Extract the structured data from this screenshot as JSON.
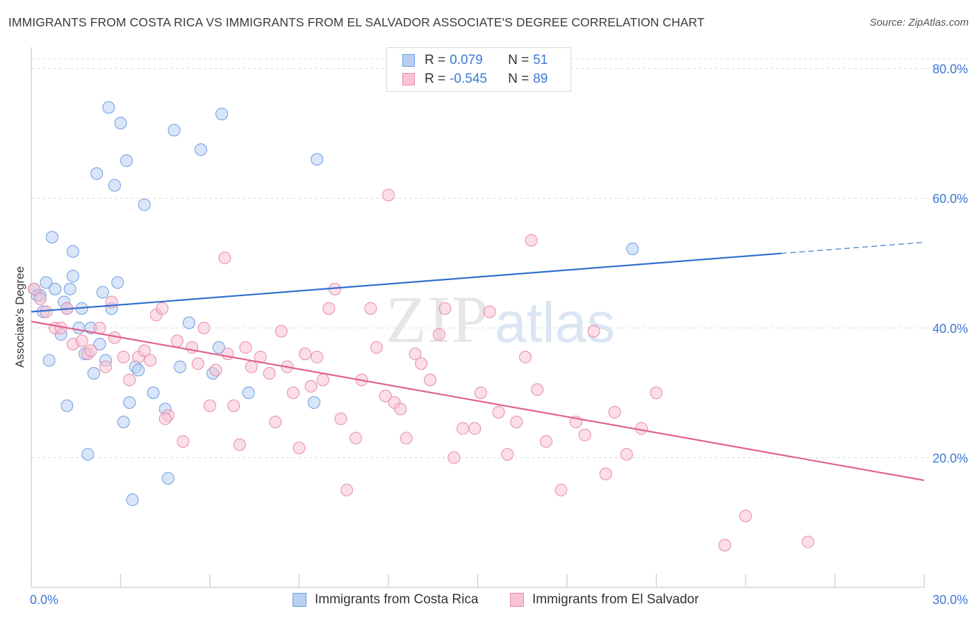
{
  "title": "IMMIGRANTS FROM COSTA RICA VS IMMIGRANTS FROM EL SALVADOR ASSOCIATE'S DEGREE CORRELATION CHART",
  "source": "Source: ZipAtlas.com",
  "watermark": {
    "zip": "ZIP",
    "atlas": "atlas"
  },
  "stats": [
    {
      "r_label": "R =",
      "r_value": "0.079",
      "n_label": "N =",
      "n_value": "51"
    },
    {
      "r_label": "R =",
      "r_value": "-0.545",
      "n_label": "N =",
      "n_value": "89"
    }
  ],
  "legend": [
    {
      "label": "Immigrants from Costa Rica"
    },
    {
      "label": "Immigrants from El Salvador"
    }
  ],
  "colors": {
    "blue_fill": "#b9d0f2",
    "blue_stroke": "#6c9ce0",
    "blue_line": "#2f6fce",
    "pink_fill": "#f8c3d4",
    "pink_stroke": "#e58aa9",
    "pink_line": "#e0618f",
    "tick_label": "#3c78d8",
    "grid": "#d9d9d9",
    "axis": "#cccccc"
  },
  "chart_data": {
    "type": "scatter",
    "ylabel": "Associate's Degree",
    "xlim": [
      0,
      30
    ],
    "ylim": [
      0,
      82
    ],
    "x_tick_labels": [
      {
        "value": 0,
        "label": "0.0%"
      },
      {
        "value": 30,
        "label": "30.0%"
      }
    ],
    "y_tick_labels": [
      {
        "value": 20,
        "label": "20.0%"
      },
      {
        "value": 40,
        "label": "40.0%"
      },
      {
        "value": 60,
        "label": "60.0%"
      },
      {
        "value": 80,
        "label": "80.0%"
      }
    ],
    "y_gridlines": [
      20,
      40,
      60,
      80,
      81.5
    ],
    "series": [
      {
        "name": "Immigrants from Costa Rica",
        "color": "blue",
        "trend": {
          "x0": 0,
          "y0": 42.5,
          "x1": 25.2,
          "y1": 51.5,
          "dash_x1": 30,
          "dash_y1": 53.2
        },
        "points": [
          [
            0.1,
            46.0
          ],
          [
            0.2,
            45.0
          ],
          [
            0.4,
            42.5
          ],
          [
            0.6,
            35.0
          ],
          [
            0.5,
            47.0
          ],
          [
            0.7,
            54.0
          ],
          [
            0.8,
            46.0
          ],
          [
            1.0,
            39.0
          ],
          [
            1.1,
            44.0
          ],
          [
            1.2,
            43.0
          ],
          [
            1.2,
            28.0
          ],
          [
            1.3,
            46.0
          ],
          [
            1.4,
            48.0
          ],
          [
            1.4,
            51.8
          ],
          [
            1.6,
            40.0
          ],
          [
            1.7,
            43.0
          ],
          [
            1.8,
            36.0
          ],
          [
            1.9,
            20.5
          ],
          [
            2.0,
            40.0
          ],
          [
            2.1,
            33.0
          ],
          [
            2.2,
            63.8
          ],
          [
            2.3,
            37.5
          ],
          [
            2.4,
            45.5
          ],
          [
            2.5,
            35.0
          ],
          [
            2.6,
            74.0
          ],
          [
            2.7,
            43.0
          ],
          [
            2.8,
            62.0
          ],
          [
            2.9,
            47.0
          ],
          [
            3.0,
            71.6
          ],
          [
            3.1,
            25.5
          ],
          [
            3.2,
            65.8
          ],
          [
            3.3,
            28.5
          ],
          [
            3.4,
            13.5
          ],
          [
            3.5,
            34.0
          ],
          [
            3.6,
            33.5
          ],
          [
            3.8,
            59.0
          ],
          [
            4.1,
            30.0
          ],
          [
            4.5,
            27.5
          ],
          [
            4.6,
            16.8
          ],
          [
            4.8,
            70.5
          ],
          [
            5.0,
            34.0
          ],
          [
            5.3,
            40.8
          ],
          [
            5.7,
            67.5
          ],
          [
            6.1,
            33.0
          ],
          [
            6.3,
            37.0
          ],
          [
            6.4,
            73.0
          ],
          [
            7.3,
            30.0
          ],
          [
            9.5,
            28.5
          ],
          [
            9.6,
            66.0
          ],
          [
            20.2,
            52.2
          ],
          [
            0.3,
            45.0
          ]
        ]
      },
      {
        "name": "Immigrants from El Salvador",
        "color": "pink",
        "trend": {
          "x0": 0,
          "y0": 41.0,
          "x1": 30,
          "y1": 16.5
        },
        "points": [
          [
            0.1,
            46.0
          ],
          [
            0.3,
            44.5
          ],
          [
            0.5,
            42.5
          ],
          [
            0.8,
            40.0
          ],
          [
            1.0,
            40.0
          ],
          [
            1.2,
            43.0
          ],
          [
            1.4,
            37.5
          ],
          [
            1.7,
            38.0
          ],
          [
            1.9,
            36.0
          ],
          [
            2.0,
            36.5
          ],
          [
            2.3,
            40.0
          ],
          [
            2.5,
            34.0
          ],
          [
            2.7,
            44.0
          ],
          [
            2.8,
            38.5
          ],
          [
            3.1,
            35.5
          ],
          [
            3.3,
            32.0
          ],
          [
            3.6,
            35.5
          ],
          [
            3.8,
            36.5
          ],
          [
            4.0,
            35.0
          ],
          [
            4.2,
            42.0
          ],
          [
            4.4,
            43.0
          ],
          [
            4.6,
            26.5
          ],
          [
            4.9,
            38.0
          ],
          [
            5.1,
            22.5
          ],
          [
            5.4,
            37.0
          ],
          [
            5.6,
            34.5
          ],
          [
            5.8,
            40.0
          ],
          [
            6.0,
            28.0
          ],
          [
            6.2,
            33.5
          ],
          [
            6.5,
            50.8
          ],
          [
            6.6,
            36.0
          ],
          [
            6.8,
            28.0
          ],
          [
            7.0,
            22.0
          ],
          [
            7.2,
            37.0
          ],
          [
            7.4,
            34.0
          ],
          [
            7.7,
            35.5
          ],
          [
            8.0,
            33.0
          ],
          [
            8.2,
            25.5
          ],
          [
            8.4,
            39.5
          ],
          [
            8.6,
            34.0
          ],
          [
            8.8,
            30.0
          ],
          [
            9.0,
            21.5
          ],
          [
            9.2,
            36.0
          ],
          [
            9.4,
            31.0
          ],
          [
            9.6,
            35.5
          ],
          [
            9.8,
            32.0
          ],
          [
            10.0,
            43.0
          ],
          [
            10.2,
            46.0
          ],
          [
            10.4,
            26.0
          ],
          [
            10.6,
            15.0
          ],
          [
            10.9,
            23.0
          ],
          [
            11.1,
            32.0
          ],
          [
            11.4,
            43.0
          ],
          [
            11.6,
            37.0
          ],
          [
            11.9,
            29.5
          ],
          [
            12.0,
            60.5
          ],
          [
            12.2,
            28.5
          ],
          [
            12.4,
            27.5
          ],
          [
            12.6,
            23.0
          ],
          [
            12.9,
            36.0
          ],
          [
            13.1,
            34.5
          ],
          [
            13.4,
            32.0
          ],
          [
            13.7,
            39.0
          ],
          [
            13.9,
            43.0
          ],
          [
            14.2,
            20.0
          ],
          [
            14.5,
            24.5
          ],
          [
            14.9,
            24.5
          ],
          [
            15.1,
            30.0
          ],
          [
            15.4,
            42.5
          ],
          [
            15.7,
            27.0
          ],
          [
            16.0,
            20.5
          ],
          [
            16.3,
            25.5
          ],
          [
            16.6,
            35.5
          ],
          [
            16.8,
            53.5
          ],
          [
            17.0,
            30.5
          ],
          [
            17.3,
            22.5
          ],
          [
            17.8,
            15.0
          ],
          [
            18.3,
            25.5
          ],
          [
            18.6,
            23.5
          ],
          [
            18.9,
            39.5
          ],
          [
            19.3,
            17.5
          ],
          [
            19.6,
            27.0
          ],
          [
            20.0,
            20.5
          ],
          [
            20.5,
            24.5
          ],
          [
            21.0,
            30.0
          ],
          [
            23.3,
            6.5
          ],
          [
            24.0,
            11.0
          ],
          [
            26.1,
            7.0
          ],
          [
            4.5,
            26.0
          ]
        ]
      }
    ]
  }
}
